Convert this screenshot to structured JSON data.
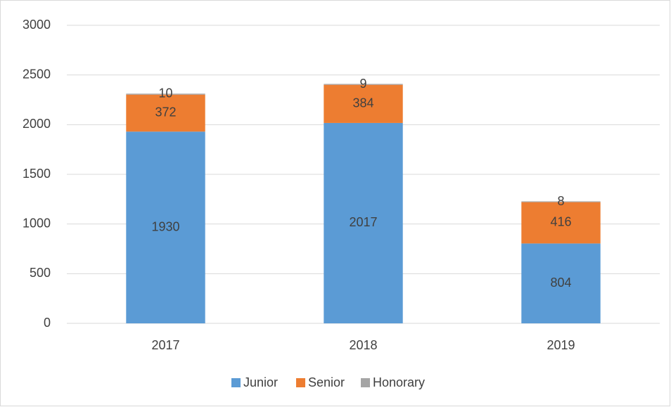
{
  "chart_data": {
    "type": "stacked_bar",
    "categories": [
      "2017",
      "2018",
      "2019"
    ],
    "series": [
      {
        "name": "Junior",
        "color": "#5b9bd5",
        "values": [
          1930,
          2017,
          804
        ]
      },
      {
        "name": "Senior",
        "color": "#ed7d31",
        "values": [
          372,
          384,
          416
        ]
      },
      {
        "name": "Honorary",
        "color": "#a5a5a5",
        "values": [
          10,
          9,
          8
        ]
      }
    ],
    "ylim": [
      0,
      3000
    ],
    "yticks": [
      0,
      500,
      1000,
      1500,
      2000,
      2500,
      3000
    ],
    "grid": true,
    "legend": "bottom",
    "data_labels": true
  }
}
